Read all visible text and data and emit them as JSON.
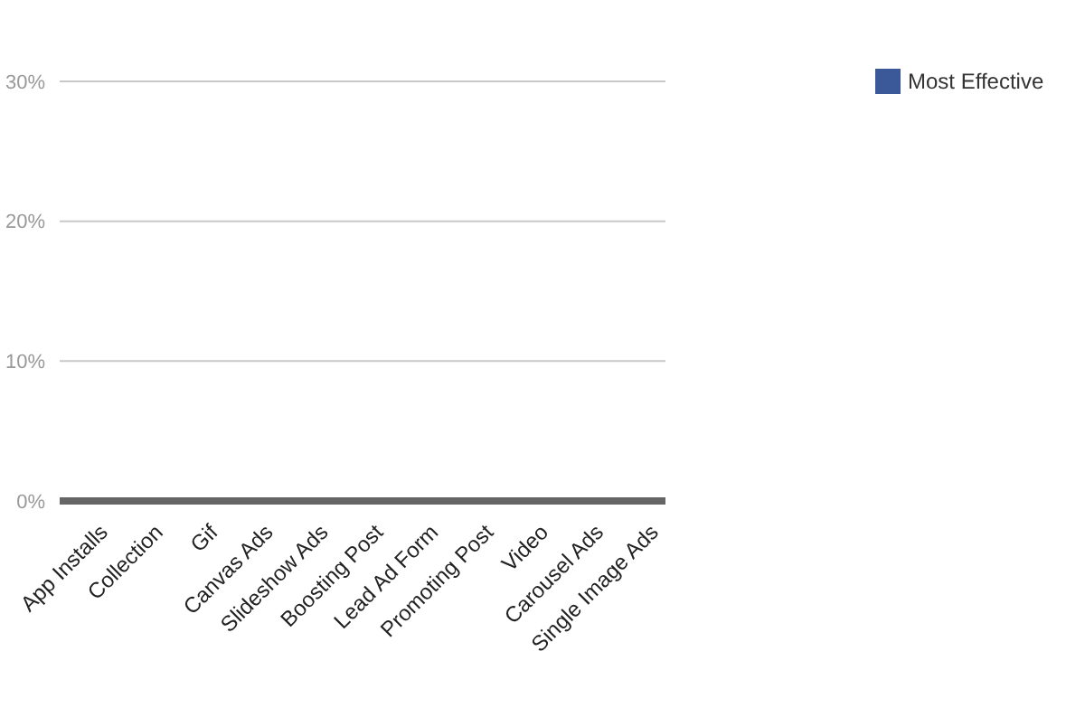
{
  "chart_data": {
    "type": "bar",
    "categories": [
      "App Installs",
      "Collection",
      "Gif",
      "Canvas Ads",
      "Slideshow Ads",
      "Boosting Post",
      "Lead Ad Form",
      "Promoting Post",
      "Video",
      "Carousel Ads",
      "Single Image Ads"
    ],
    "series": [
      {
        "name": "Most Effective",
        "color": "#3b5998",
        "values": [
          0,
          0,
          0,
          0,
          0,
          0,
          0,
          0,
          0,
          0,
          0
        ]
      }
    ],
    "ylim": [
      0,
      30
    ],
    "yticks": [
      {
        "value": 0,
        "label": "0%"
      },
      {
        "value": 10,
        "label": "10%"
      },
      {
        "value": 20,
        "label": "20%"
      },
      {
        "value": 30,
        "label": "30%"
      }
    ],
    "grid": "y",
    "legend": "top right"
  }
}
